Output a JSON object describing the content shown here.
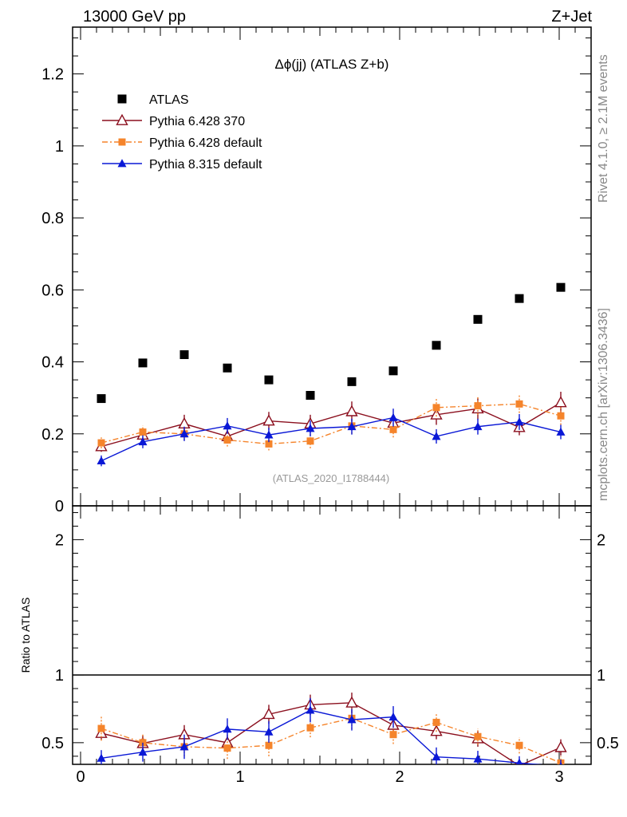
{
  "header": {
    "energy_label": "13000 GeV pp",
    "process_label": "Z+Jet"
  },
  "side_labels": {
    "rivet": "Rivet 4.1.0, ≥ 2.1M events",
    "mcplots": "mcplots.cern.ch [arXiv:1306.3436]"
  },
  "colors": {
    "atlas": "#000000",
    "pythia6_370": "#8b0f1e",
    "pythia6_default": "#f5842b",
    "pythia8_default": "#0a18d6"
  },
  "chart_data": [
    {
      "type": "scatter",
      "panel": "main",
      "title": "Δϕ(jj) (ATLAS Z+b)",
      "watermark": "(ATLAS_2020_I1788444)",
      "xlabel": "",
      "ylabel": "",
      "xlim": [
        -0.05,
        3.2
      ],
      "ylim": [
        0,
        1.33
      ],
      "yticks": [
        0,
        0.2,
        0.4,
        0.6,
        0.8,
        1,
        1.2
      ],
      "ytick_labels": [
        "0",
        "0.2",
        "0.4",
        "0.6",
        "0.8",
        "1",
        "1.2"
      ],
      "legend_position": "top-left",
      "x": [
        0.13,
        0.39,
        0.65,
        0.92,
        1.18,
        1.44,
        1.7,
        1.96,
        2.23,
        2.49,
        2.75,
        3.01
      ],
      "series": [
        {
          "name": "ATLAS",
          "marker": "square",
          "values": [
            0.298,
            0.397,
            0.42,
            0.383,
            0.35,
            0.307,
            0.345,
            0.375,
            0.446,
            0.518,
            0.576,
            0.607
          ]
        },
        {
          "name": "Pythia 6.428 370",
          "marker": "triangle-open",
          "line": "solid",
          "values": [
            0.165,
            0.197,
            0.228,
            0.193,
            0.236,
            0.228,
            0.262,
            0.23,
            0.253,
            0.27,
            0.218,
            0.287
          ],
          "errors": [
            0.015,
            0.018,
            0.025,
            0.02,
            0.025,
            0.025,
            0.028,
            0.025,
            0.028,
            0.03,
            0.022,
            0.03
          ]
        },
        {
          "name": "Pythia 6.428 default",
          "marker": "square-small",
          "line": "dashdot",
          "values": [
            0.175,
            0.205,
            0.2,
            0.183,
            0.172,
            0.18,
            0.222,
            0.212,
            0.273,
            0.278,
            0.283,
            0.25
          ],
          "errors": [
            0.015,
            0.018,
            0.018,
            0.018,
            0.018,
            0.02,
            0.022,
            0.022,
            0.025,
            0.025,
            0.025,
            0.025
          ]
        },
        {
          "name": "Pythia 8.315 default",
          "marker": "triangle",
          "line": "solid",
          "values": [
            0.125,
            0.178,
            0.2,
            0.222,
            0.197,
            0.215,
            0.22,
            0.245,
            0.193,
            0.22,
            0.233,
            0.205
          ],
          "errors": [
            0.015,
            0.018,
            0.02,
            0.022,
            0.02,
            0.022,
            0.022,
            0.025,
            0.02,
            0.022,
            0.022,
            0.02
          ]
        }
      ]
    },
    {
      "type": "scatter",
      "panel": "ratio",
      "ylabel": "Ratio to ATLAS",
      "xlabel": "",
      "xlim": [
        -0.05,
        3.2
      ],
      "ylim": [
        0.34,
        2.25
      ],
      "yticks": [
        0.5,
        1,
        2
      ],
      "ytick_labels": [
        "0.5",
        "1",
        "2"
      ],
      "xticks": [
        0,
        1,
        2,
        3
      ],
      "xtick_labels": [
        "0",
        "1",
        "2",
        "3"
      ],
      "reference_line": 1,
      "x": [
        0.13,
        0.39,
        0.65,
        0.92,
        1.18,
        1.44,
        1.7,
        1.96,
        2.23,
        2.49,
        2.75,
        3.01
      ],
      "series": [
        {
          "name": "Pythia 6.428 370",
          "values": [
            0.57,
            0.495,
            0.56,
            0.5,
            0.71,
            0.78,
            0.795,
            0.63,
            0.585,
            0.53,
            0.33,
            0.465
          ],
          "errors": [
            0.05,
            0.06,
            0.07,
            0.06,
            0.07,
            0.075,
            0.075,
            0.07,
            0.06,
            0.06,
            0.04,
            0.06
          ]
        },
        {
          "name": "Pythia 6.428 default",
          "values": [
            0.605,
            0.5,
            0.47,
            0.46,
            0.48,
            0.61,
            0.68,
            0.56,
            0.65,
            0.545,
            0.48,
            0.35
          ],
          "errors": [
            0.09,
            0.07,
            0.07,
            0.08,
            0.08,
            0.07,
            0.08,
            0.07,
            0.07,
            0.06,
            0.06,
            0.05
          ]
        },
        {
          "name": "Pythia 8.315 default",
          "values": [
            0.385,
            0.43,
            0.47,
            0.6,
            0.58,
            0.74,
            0.67,
            0.69,
            0.395,
            0.38,
            0.35,
            0.325
          ],
          "errors": [
            0.06,
            0.07,
            0.09,
            0.08,
            0.08,
            0.09,
            0.08,
            0.08,
            0.07,
            0.06,
            0.05,
            0.05
          ]
        }
      ]
    }
  ]
}
